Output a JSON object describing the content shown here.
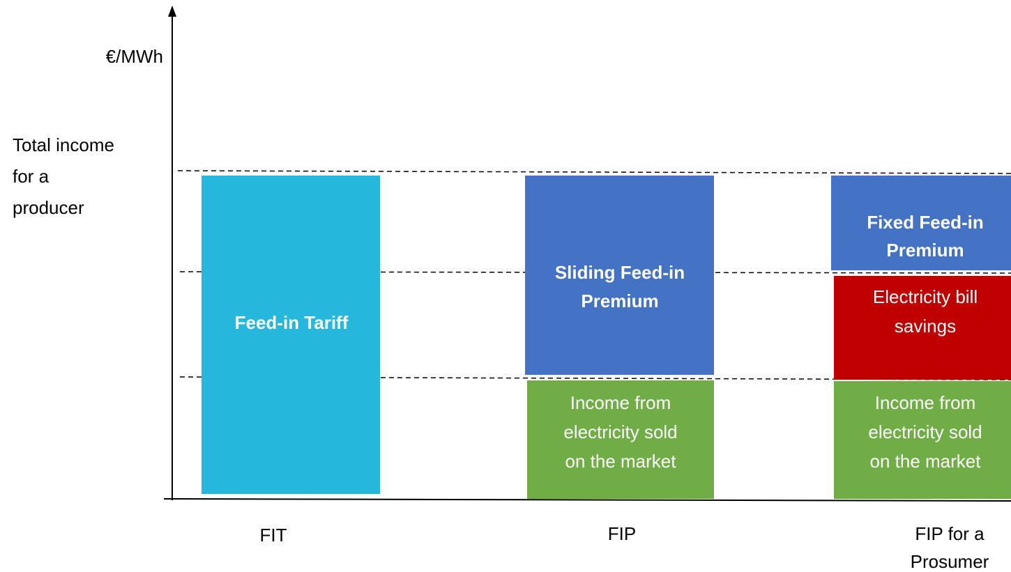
{
  "axis_label": "€/MWh",
  "side_label": [
    "Total income",
    "for a",
    "producer"
  ],
  "columns": [
    {
      "label": [
        "FIT"
      ],
      "segments": [
        {
          "label": [
            "Feed-in Tariff"
          ]
        }
      ]
    },
    {
      "label": [
        "FIP"
      ],
      "segments": [
        {
          "label": [
            "Sliding Feed-in",
            "Premium"
          ]
        },
        {
          "label": [
            "Income from",
            "electricity sold",
            "on the market"
          ]
        }
      ]
    },
    {
      "label": [
        "FIP for a",
        "Prosumer"
      ],
      "segments": [
        {
          "label": [
            "Fixed Feed-in",
            "Premium"
          ]
        },
        {
          "label": [
            "Electricity bill",
            "savings"
          ]
        },
        {
          "label": [
            "Income from",
            "electricity sold",
            "on the market"
          ]
        }
      ]
    }
  ]
}
